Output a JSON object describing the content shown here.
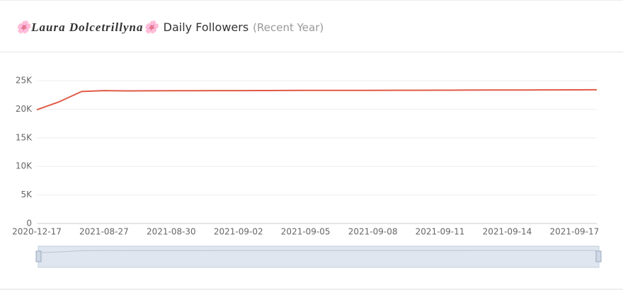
{
  "chart_data": {
    "type": "line",
    "title": "🌸Laura Dolcetrillyna🌸",
    "subtitle": "Daily Followers",
    "note": "(Recent Year)",
    "categories": [
      "2020-12-17",
      null,
      null,
      "2021-08-27",
      null,
      null,
      "2021-08-30",
      null,
      null,
      "2021-09-02",
      null,
      null,
      "2021-09-05",
      null,
      null,
      "2021-09-08",
      null,
      null,
      "2021-09-11",
      null,
      null,
      "2021-09-14",
      null,
      null,
      "2021-09-17",
      null
    ],
    "values": [
      19900,
      21300,
      23100,
      23250,
      23200,
      23220,
      23230,
      23240,
      23250,
      23260,
      23270,
      23280,
      23290,
      23300,
      23300,
      23310,
      23320,
      23320,
      23330,
      23340,
      23350,
      23360,
      23370,
      23380,
      23390,
      23400
    ],
    "color": "#e05a47",
    "ylim": [
      0,
      25000
    ],
    "yticks": [
      0,
      {
        "value": 5000,
        "label": "5K"
      },
      {
        "value": 10000,
        "label": "10K"
      },
      {
        "value": 15000,
        "label": "15K"
      },
      {
        "value": 20000,
        "label": "20K"
      },
      {
        "value": 25000,
        "label": "25K"
      }
    ],
    "grid": true
  }
}
